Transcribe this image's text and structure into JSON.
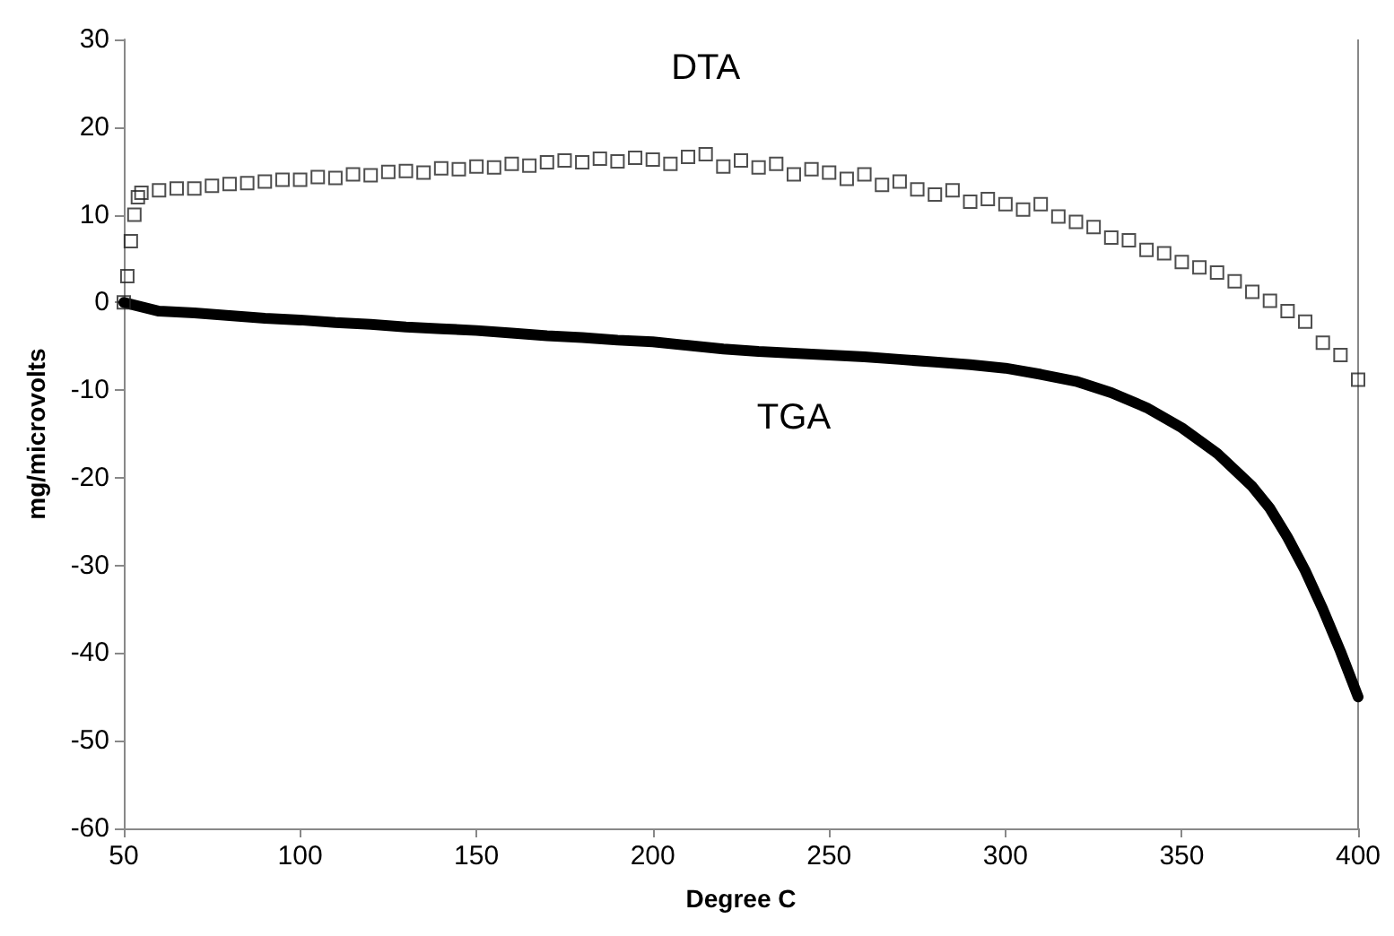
{
  "chart_data": {
    "type": "scatter",
    "xlabel": "Degree C",
    "ylabel": "mg/microvolts",
    "xlim": [
      50,
      400
    ],
    "xticks": [
      50,
      100,
      150,
      200,
      250,
      300,
      350,
      400
    ],
    "ylim": [
      -60,
      30
    ],
    "yticks": [
      -60,
      -50,
      -40,
      -30,
      -20,
      -10,
      0,
      10,
      20,
      30
    ],
    "grid": false,
    "series": [
      {
        "name": "DTA",
        "marker": "square",
        "color": "#222222",
        "x": [
          50,
          51,
          52,
          53,
          54,
          55,
          60,
          65,
          70,
          75,
          80,
          85,
          90,
          95,
          100,
          105,
          110,
          115,
          120,
          125,
          130,
          135,
          140,
          145,
          150,
          155,
          160,
          165,
          170,
          175,
          180,
          185,
          190,
          195,
          200,
          205,
          210,
          215,
          220,
          225,
          230,
          235,
          240,
          245,
          250,
          255,
          260,
          265,
          270,
          275,
          280,
          285,
          290,
          295,
          300,
          305,
          310,
          315,
          320,
          325,
          330,
          335,
          340,
          345,
          350,
          355,
          360,
          365,
          370,
          375,
          380,
          385,
          390,
          395,
          400
        ],
        "values": [
          0,
          3,
          7,
          10,
          12,
          12.5,
          12.8,
          13,
          13,
          13.3,
          13.5,
          13.6,
          13.8,
          14,
          14,
          14.3,
          14.2,
          14.6,
          14.5,
          14.9,
          15,
          14.8,
          15.3,
          15.2,
          15.5,
          15.4,
          15.8,
          15.6,
          16,
          16.2,
          16,
          16.4,
          16.1,
          16.5,
          16.3,
          15.8,
          16.6,
          16.9,
          15.5,
          16.2,
          15.4,
          15.8,
          14.6,
          15.2,
          14.8,
          14.1,
          14.6,
          13.4,
          13.8,
          12.9,
          12.3,
          12.8,
          11.5,
          11.8,
          11.2,
          10.6,
          11.2,
          9.8,
          9.2,
          8.6,
          7.4,
          7.1,
          6.0,
          5.6,
          4.6,
          4.0,
          3.4,
          2.4,
          1.2,
          0.2,
          -1.0,
          -2.2,
          -4.6,
          -6.0,
          -8.8
        ]
      },
      {
        "name": "TGA",
        "type": "line",
        "marker": "none",
        "color": "#000000",
        "x": [
          50,
          60,
          70,
          80,
          90,
          100,
          110,
          120,
          130,
          140,
          150,
          160,
          170,
          180,
          190,
          200,
          210,
          220,
          230,
          240,
          250,
          260,
          270,
          280,
          290,
          300,
          310,
          320,
          330,
          340,
          350,
          360,
          370,
          375,
          380,
          385,
          390,
          395,
          400
        ],
        "values": [
          0,
          -1,
          -1.2,
          -1.5,
          -1.8,
          -2,
          -2.3,
          -2.5,
          -2.8,
          -3,
          -3.2,
          -3.5,
          -3.8,
          -4,
          -4.3,
          -4.5,
          -4.9,
          -5.3,
          -5.6,
          -5.8,
          -6,
          -6.2,
          -6.5,
          -6.8,
          -7.1,
          -7.5,
          -8.2,
          -9,
          -10.3,
          -12,
          -14.3,
          -17.2,
          -21,
          -23.5,
          -26.8,
          -30.6,
          -35,
          -39.8,
          -45
        ]
      }
    ]
  }
}
